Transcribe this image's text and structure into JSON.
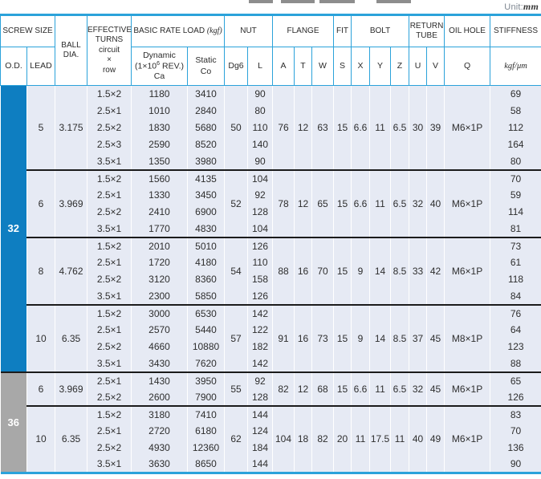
{
  "page": {
    "unit_prefix": "Unit:",
    "unit_value": "mm"
  },
  "colors": {
    "accent_blue": "#2ba2da",
    "od_blue": "#0e7ec1",
    "od_gray": "#a8a8a8",
    "row_bg": "#e6eaf4",
    "group_separator": "#1b1b1b"
  },
  "header": {
    "screw_size": "SCREW SIZE",
    "od": "O.D.",
    "lead": "LEAD",
    "ball_dia_line1": "BALL",
    "ball_dia_line2": "DIA.",
    "turns_line1": "EFFECTIVE",
    "turns_line2": "TURNS",
    "turns_line3": "circuit",
    "turns_line4": "×",
    "turns_line5": "row",
    "basic_rate_load": "BASIC RATE LOAD",
    "brl_unit": "(kgf)",
    "dynamic_line1": "Dynamic",
    "dynamic_pre": "(1×10",
    "dynamic_sup": "6",
    "dynamic_post": " REV.)",
    "dynamic_line3": "Ca",
    "static_line1": "Static",
    "static_line2": "Co",
    "nut": "NUT",
    "dg6": "Dg6",
    "l": "L",
    "flange": "FLANGE",
    "a": "A",
    "t": "T",
    "w": "W",
    "fit": "FIT",
    "s": "S",
    "bolt": "BOLT",
    "x": "X",
    "y": "Y",
    "z": "Z",
    "return_tube_line1": "RETURN",
    "return_tube_line2": "TUBE",
    "u": "U",
    "v": "V",
    "oil_hole": "OIL HOLE",
    "q": "Q",
    "stiffness": "STIFFNESS",
    "stiffness_unit": "kgf/μm"
  },
  "table": {
    "od_blocks": [
      {
        "od": "32",
        "od_style": "blue",
        "groups": [
          {
            "lead": "5",
            "ball_dia": "3.175",
            "dg6": "50",
            "a": "76",
            "t": "12",
            "w": "63",
            "s": "15",
            "x": "6.6",
            "y": "11",
            "z": "6.5",
            "u": "30",
            "v": "39",
            "q": "M6×1P",
            "rows": [
              {
                "turns": "1.5×2",
                "ca": "1180",
                "co": "3410",
                "l": "90",
                "stiffness": "69"
              },
              {
                "turns": "2.5×1",
                "ca": "1010",
                "co": "2840",
                "l": "80",
                "stiffness": "58"
              },
              {
                "turns": "2.5×2",
                "ca": "1830",
                "co": "5680",
                "l": "110",
                "stiffness": "112"
              },
              {
                "turns": "2.5×3",
                "ca": "2590",
                "co": "8520",
                "l": "140",
                "stiffness": "164"
              },
              {
                "turns": "3.5×1",
                "ca": "1350",
                "co": "3980",
                "l": "90",
                "stiffness": "80"
              }
            ]
          },
          {
            "lead": "6",
            "ball_dia": "3.969",
            "dg6": "52",
            "a": "78",
            "t": "12",
            "w": "65",
            "s": "15",
            "x": "6.6",
            "y": "11",
            "z": "6.5",
            "u": "32",
            "v": "40",
            "q": "M6×1P",
            "rows": [
              {
                "turns": "1.5×2",
                "ca": "1560",
                "co": "4135",
                "l": "104",
                "stiffness": "70"
              },
              {
                "turns": "2.5×1",
                "ca": "1330",
                "co": "3450",
                "l": "92",
                "stiffness": "59"
              },
              {
                "turns": "2.5×2",
                "ca": "2410",
                "co": "6900",
                "l": "128",
                "stiffness": "114"
              },
              {
                "turns": "3.5×1",
                "ca": "1770",
                "co": "4830",
                "l": "104",
                "stiffness": "81"
              }
            ]
          },
          {
            "lead": "8",
            "ball_dia": "4.762",
            "dg6": "54",
            "a": "88",
            "t": "16",
            "w": "70",
            "s": "15",
            "x": "9",
            "y": "14",
            "z": "8.5",
            "u": "33",
            "v": "42",
            "q": "M6×1P",
            "rows": [
              {
                "turns": "1.5×2",
                "ca": "2010",
                "co": "5010",
                "l": "126",
                "stiffness": "73"
              },
              {
                "turns": "2.5×1",
                "ca": "1720",
                "co": "4180",
                "l": "110",
                "stiffness": "61"
              },
              {
                "turns": "2.5×2",
                "ca": "3120",
                "co": "8360",
                "l": "158",
                "stiffness": "118"
              },
              {
                "turns": "3.5×1",
                "ca": "2300",
                "co": "5850",
                "l": "126",
                "stiffness": "84"
              }
            ]
          },
          {
            "lead": "10",
            "ball_dia": "6.35",
            "dg6": "57",
            "a": "91",
            "t": "16",
            "w": "73",
            "s": "15",
            "x": "9",
            "y": "14",
            "z": "8.5",
            "u": "37",
            "v": "45",
            "q": "M8×1P",
            "rows": [
              {
                "turns": "1.5×2",
                "ca": "3000",
                "co": "6530",
                "l": "142",
                "stiffness": "76"
              },
              {
                "turns": "2.5×1",
                "ca": "2570",
                "co": "5440",
                "l": "122",
                "stiffness": "64"
              },
              {
                "turns": "2.5×2",
                "ca": "4660",
                "co": "10880",
                "l": "182",
                "stiffness": "123"
              },
              {
                "turns": "3.5×1",
                "ca": "3430",
                "co": "7620",
                "l": "142",
                "stiffness": "88"
              }
            ]
          }
        ]
      },
      {
        "od": "36",
        "od_style": "gray",
        "groups": [
          {
            "lead": "6",
            "ball_dia": "3.969",
            "dg6": "55",
            "a": "82",
            "t": "12",
            "w": "68",
            "s": "15",
            "x": "6.6",
            "y": "11",
            "z": "6.5",
            "u": "32",
            "v": "45",
            "q": "M6×1P",
            "rows": [
              {
                "turns": "2.5×1",
                "ca": "1430",
                "co": "3950",
                "l": "92",
                "stiffness": "65"
              },
              {
                "turns": "2.5×2",
                "ca": "2600",
                "co": "7900",
                "l": "128",
                "stiffness": "126"
              }
            ]
          },
          {
            "lead": "10",
            "ball_dia": "6.35",
            "dg6": "62",
            "a": "104",
            "t": "18",
            "w": "82",
            "s": "20",
            "x": "11",
            "y": "17.5",
            "z": "11",
            "u": "40",
            "v": "49",
            "q": "M6×1P",
            "rows": [
              {
                "turns": "1.5×2",
                "ca": "3180",
                "co": "7410",
                "l": "144",
                "stiffness": "83"
              },
              {
                "turns": "2.5×1",
                "ca": "2720",
                "co": "6180",
                "l": "124",
                "stiffness": "70"
              },
              {
                "turns": "2.5×2",
                "ca": "4930",
                "co": "12360",
                "l": "184",
                "stiffness": "136"
              },
              {
                "turns": "3.5×1",
                "ca": "3630",
                "co": "8650",
                "l": "144",
                "stiffness": "90"
              }
            ]
          }
        ]
      }
    ]
  }
}
